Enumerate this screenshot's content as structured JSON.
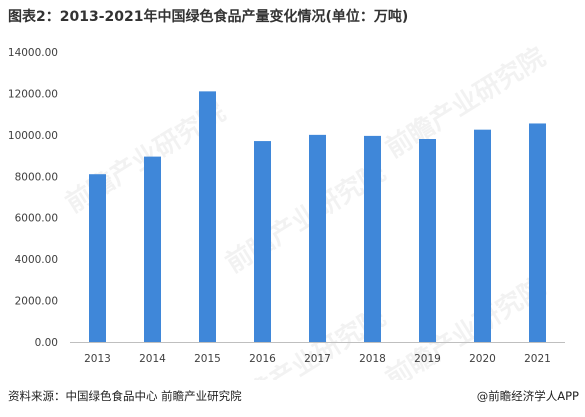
{
  "title": "图表2：2013-2021年中国绿色食品产量变化情况(单位：万吨)",
  "source": "资料来源：中国绿色食品中心 前瞻产业研究院",
  "brand": "@前瞻经济学人APP",
  "watermark": "前瞻产业研究院",
  "colors": {
    "bar": "#3f87d9",
    "axis": "#bfbfbf",
    "text": "#404040"
  },
  "chart_data": {
    "type": "bar",
    "title": "图表2：2013-2021年中国绿色食品产量变化情况(单位：万吨)",
    "xlabel": "",
    "ylabel": "",
    "categories": [
      "2013",
      "2014",
      "2015",
      "2016",
      "2017",
      "2018",
      "2019",
      "2020",
      "2021"
    ],
    "values": [
      8100,
      8950,
      12100,
      9700,
      10000,
      9950,
      9800,
      10250,
      10550
    ],
    "ylim": [
      0,
      14000
    ],
    "yticks": [
      0,
      2000,
      4000,
      6000,
      8000,
      10000,
      12000,
      14000
    ],
    "ytick_labels": [
      "0.00",
      "2000.00",
      "4000.00",
      "6000.00",
      "8000.00",
      "10000.00",
      "12000.00",
      "14000.00"
    ],
    "grid": false,
    "legend": "none"
  }
}
